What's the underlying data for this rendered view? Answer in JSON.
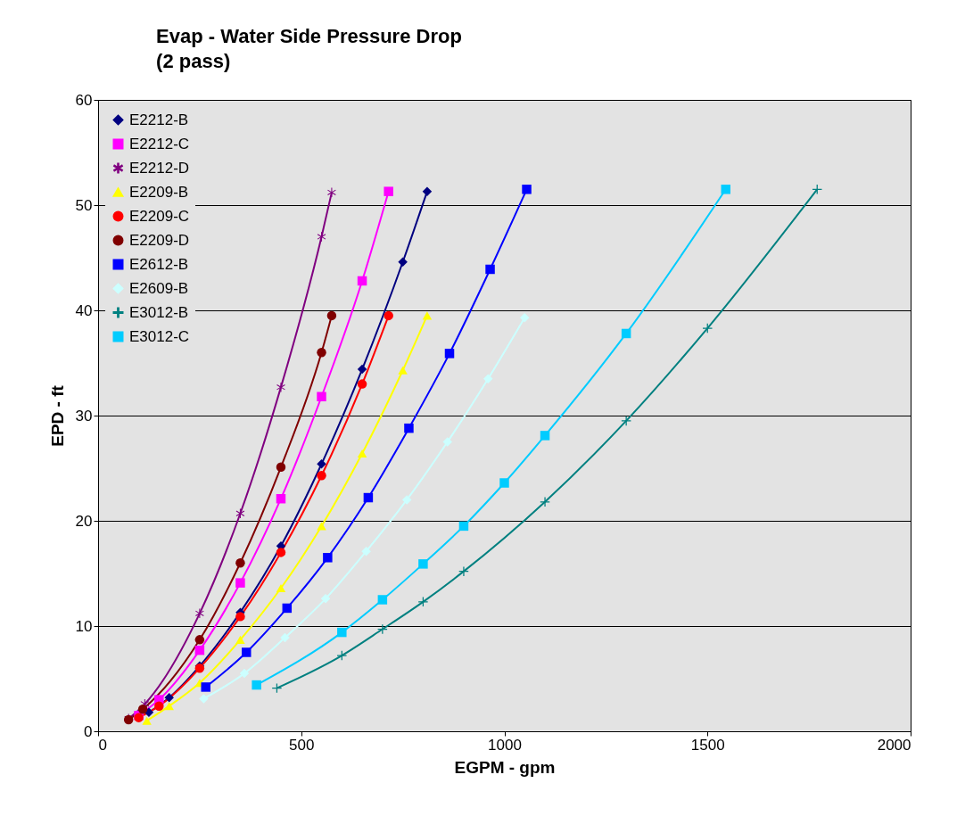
{
  "chart_data": {
    "type": "line",
    "title": "Evap - Water Side Pressure Drop",
    "subtitle": "(2 pass)",
    "xlabel": "EGPM - gpm",
    "ylabel": "EPD - ft",
    "xlim": [
      0,
      2000
    ],
    "xticks": [
      0,
      500,
      {
        "value": 1000,
        "label": "1000"
      },
      {
        "value": 1500,
        "label": "1500"
      },
      {
        "value": 2000,
        "label": "2000"
      }
    ],
    "ylim": [
      0,
      60
    ],
    "yticks": [
      0,
      10,
      20,
      30,
      40,
      50,
      60
    ],
    "grid": "y",
    "legend": "top left",
    "series": [
      {
        "name": "E2212-B",
        "color": "#000080",
        "marker": "diamond",
        "x": [
          125,
          175,
          250,
          350,
          450,
          550,
          650,
          750,
          810
        ],
        "values": [
          1.8,
          3.2,
          6.2,
          11.3,
          17.6,
          25.4,
          34.4,
          44.6,
          51.3
        ]
      },
      {
        "name": "E2212-C",
        "color": "#ff00ff",
        "marker": "square",
        "x": [
          100,
          150,
          250,
          350,
          450,
          550,
          650,
          715
        ],
        "values": [
          1.5,
          3.0,
          7.7,
          14.1,
          22.1,
          31.8,
          42.8,
          51.3
        ]
      },
      {
        "name": "E2212-D",
        "color": "#800080",
        "marker": "star",
        "x": [
          75,
          115,
          250,
          350,
          450,
          550,
          575
        ],
        "values": [
          1.2,
          2.6,
          11.2,
          20.7,
          32.7,
          47.0,
          51.2
        ]
      },
      {
        "name": "E2209-B",
        "color": "#ffff00",
        "marker": "triangle",
        "x": [
          120,
          175,
          250,
          350,
          450,
          550,
          650,
          750,
          810
        ],
        "values": [
          1.0,
          2.4,
          4.6,
          8.7,
          13.6,
          19.5,
          26.4,
          34.3,
          39.5
        ]
      },
      {
        "name": "E2209-C",
        "color": "#ff0000",
        "marker": "circle",
        "x": [
          100,
          150,
          250,
          350,
          450,
          550,
          650,
          715
        ],
        "values": [
          1.3,
          2.4,
          6.0,
          10.9,
          17.0,
          24.3,
          33.0,
          39.5
        ]
      },
      {
        "name": "E2209-D",
        "color": "#800000",
        "marker": "circle",
        "x": [
          75,
          110,
          250,
          350,
          450,
          550,
          575
        ],
        "values": [
          1.1,
          2.1,
          8.7,
          16.0,
          25.1,
          36.0,
          39.5
        ]
      },
      {
        "name": "E2612-B",
        "color": "#0000ff",
        "marker": "square",
        "x": [
          265,
          365,
          465,
          565,
          665,
          765,
          865,
          965,
          1055
        ],
        "values": [
          4.2,
          7.5,
          11.7,
          16.5,
          22.2,
          28.8,
          35.9,
          43.9,
          51.5
        ]
      },
      {
        "name": "E2609-B",
        "color": "#ccffff",
        "marker": "diamond",
        "x": [
          260,
          360,
          460,
          560,
          660,
          760,
          860,
          960,
          1050
        ],
        "values": [
          3.1,
          5.5,
          8.9,
          12.6,
          17.1,
          22.0,
          27.5,
          33.5,
          39.3
        ]
      },
      {
        "name": "E3012-B",
        "color": "#008080",
        "marker": "cross",
        "x": [
          440,
          600,
          700,
          800,
          900,
          1100,
          1300,
          1500,
          1770
        ],
        "values": [
          4.1,
          7.2,
          9.7,
          12.3,
          15.2,
          21.8,
          29.5,
          38.3,
          51.5
        ]
      },
      {
        "name": "E3012-C",
        "color": "#00ccff",
        "marker": "square",
        "x": [
          390,
          600,
          700,
          800,
          900,
          1000,
          1100,
          1300,
          1545
        ],
        "values": [
          4.4,
          9.4,
          12.5,
          15.9,
          19.5,
          23.6,
          28.1,
          37.8,
          51.5
        ]
      }
    ]
  }
}
